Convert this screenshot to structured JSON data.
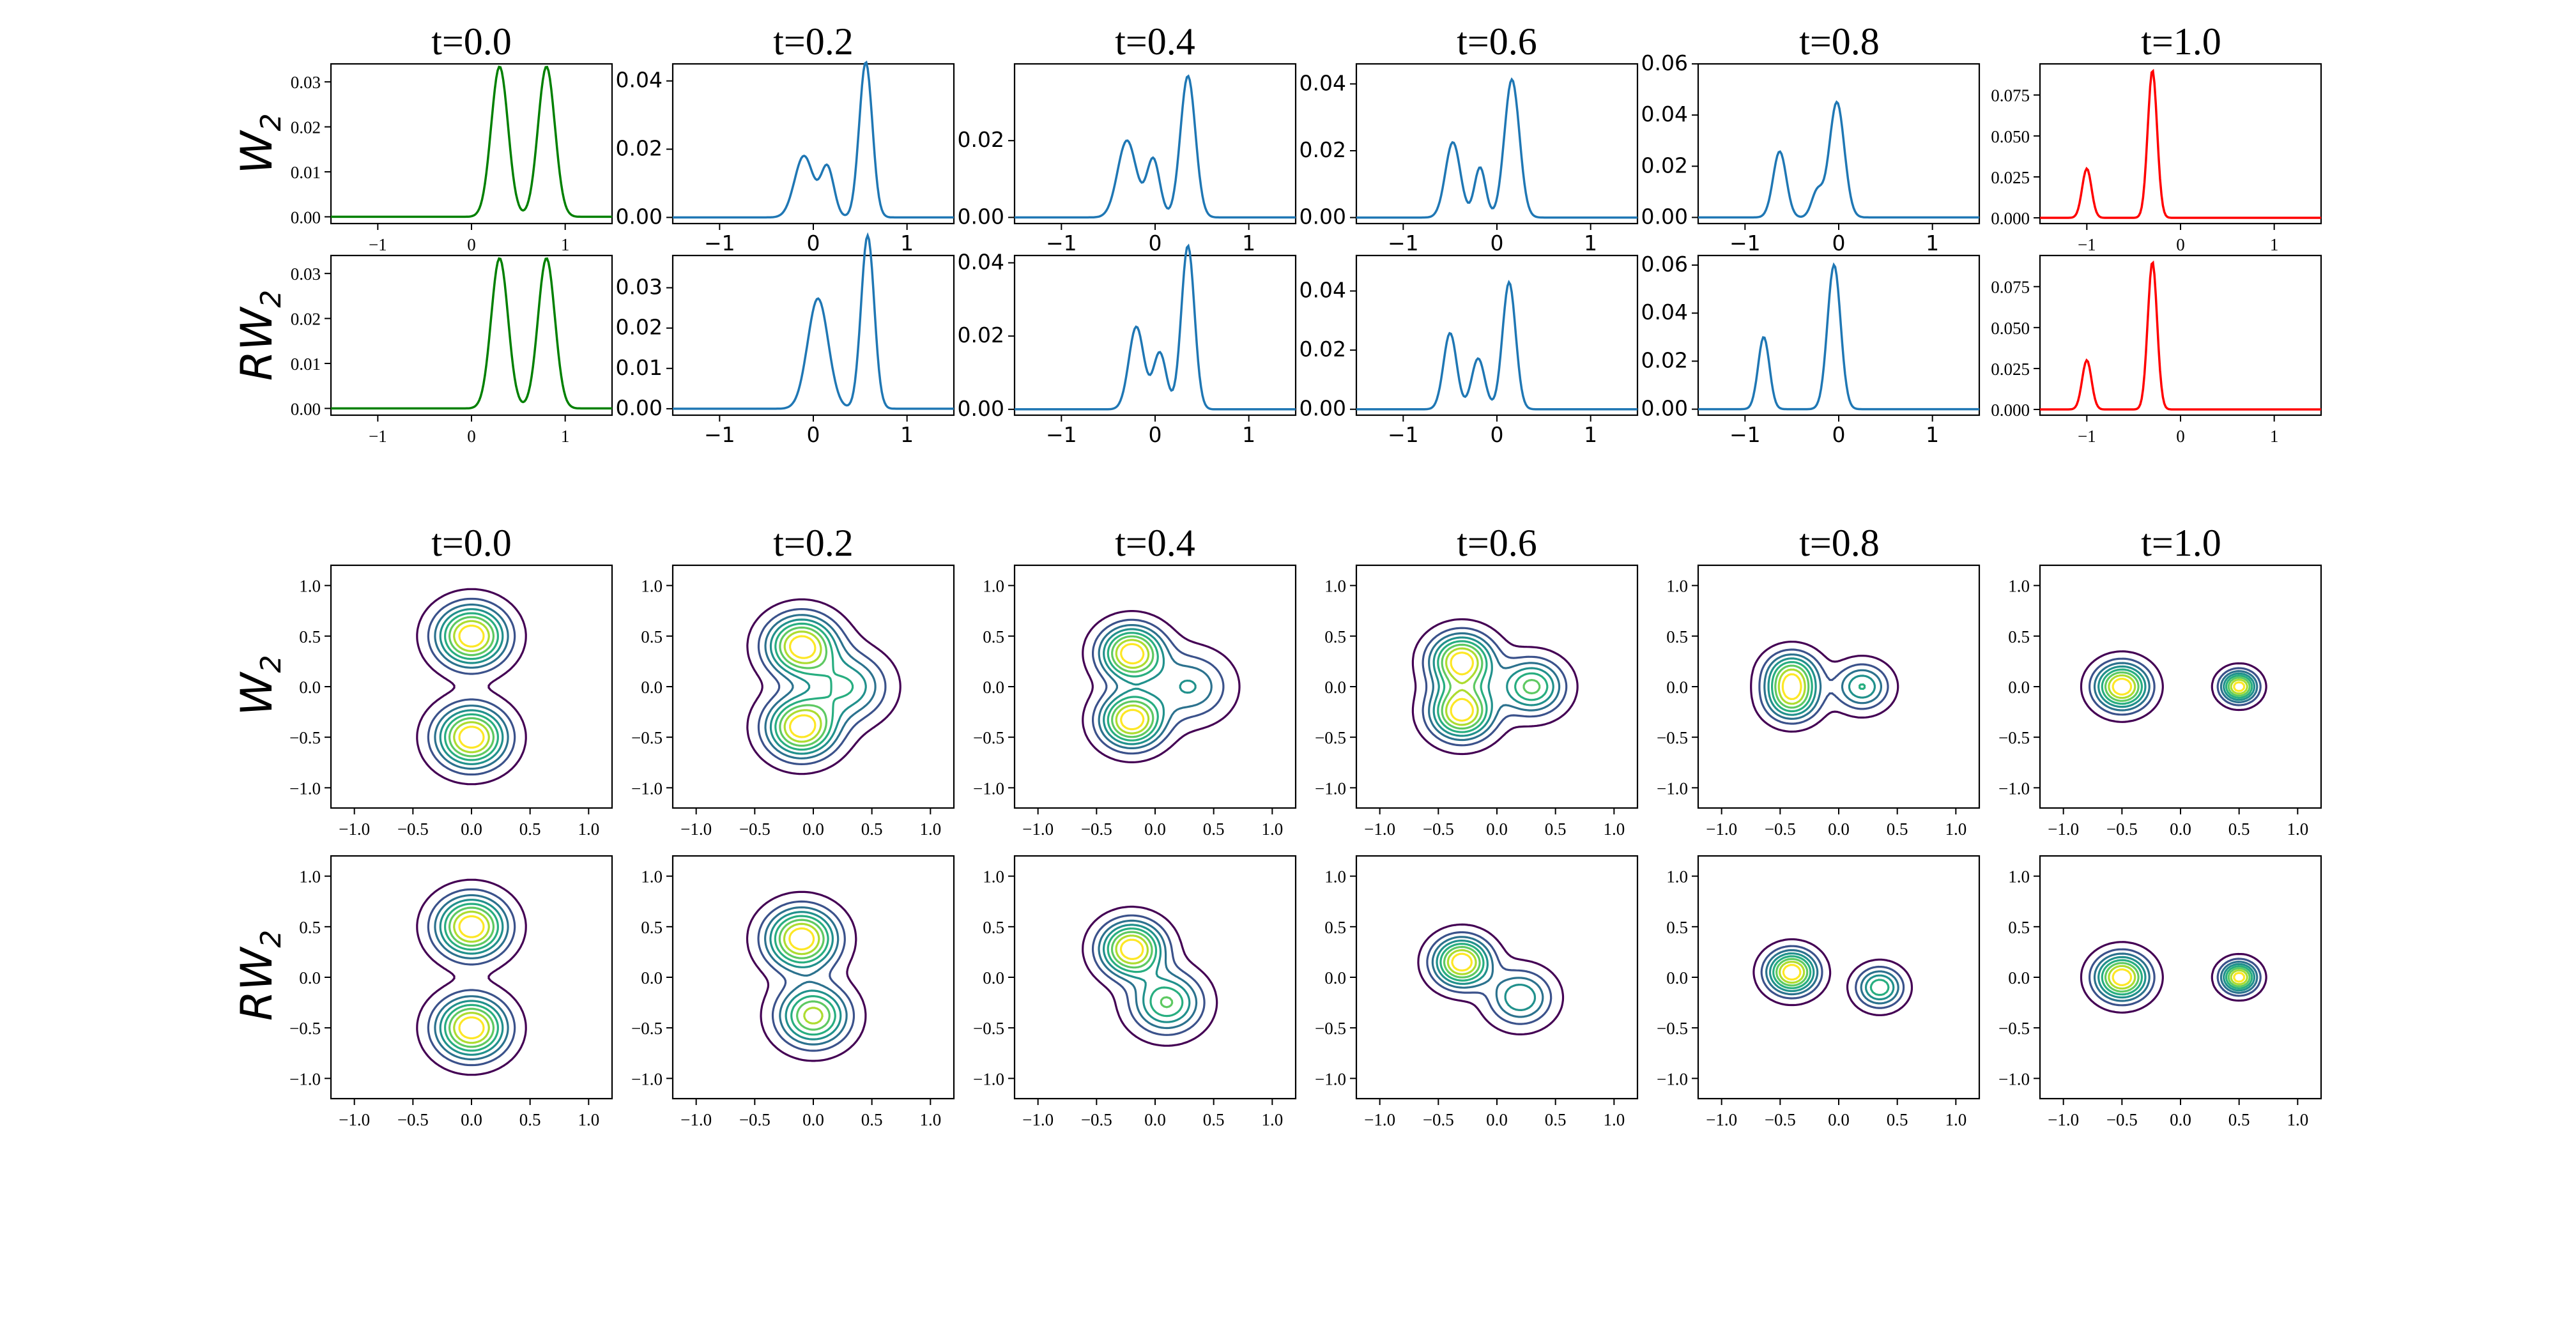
{
  "figure": {
    "column_titles": [
      "t=0.0",
      "t=0.2",
      "t=0.4",
      "t=0.6",
      "t=0.8",
      "t=1.0"
    ],
    "row_labels": {
      "w2": {
        "main": "W",
        "sub": "2"
      },
      "rw2": {
        "main": "RW",
        "sub": "2"
      }
    },
    "colors": {
      "start": "#008000",
      "middle": "#1f77b4",
      "end": "#ff0000",
      "contour_levels": [
        "#440154",
        "#3b528b",
        "#2c728e",
        "#21918c",
        "#28ae80",
        "#5ec962",
        "#addc30",
        "#fde725"
      ]
    }
  },
  "chart_data": [
    {
      "type": "line",
      "group": "1d densities",
      "method": "W2",
      "xlim": [
        -1.5,
        1.5
      ],
      "x_ticks": [
        "-1",
        "0",
        "1"
      ],
      "panels": [
        {
          "t": "t=0.0",
          "color": "start",
          "components": [
            {
              "mu": 0.3,
              "sigma": 0.09,
              "w": 0.5
            },
            {
              "mu": 0.8,
              "sigma": 0.09,
              "w": 0.5
            }
          ],
          "ylim": [
            -0.0015,
            0.034
          ],
          "y_ticks": [
            "0.00",
            "0.01",
            "0.02",
            "0.03"
          ]
        },
        {
          "t": "t=0.2",
          "color": "middle",
          "components": [
            {
              "mu": -0.1,
              "sigma": 0.1,
              "w": 0.3
            },
            {
              "mu": 0.15,
              "sigma": 0.07,
              "w": 0.17
            },
            {
              "mu": 0.56,
              "sigma": 0.07,
              "w": 0.53
            }
          ],
          "ylim": [
            -0.0018,
            0.045
          ],
          "y_ticks": [
            "0.00",
            "0.02",
            "0.04"
          ]
        },
        {
          "t": "t=0.4",
          "color": "middle",
          "components": [
            {
              "mu": -0.3,
              "sigma": 0.1,
              "w": 0.34
            },
            {
              "mu": -0.02,
              "sigma": 0.07,
              "w": 0.18
            },
            {
              "mu": 0.35,
              "sigma": 0.08,
              "w": 0.5
            }
          ],
          "ylim": [
            -0.0016,
            0.04
          ],
          "y_ticks": [
            "0.00",
            "0.02"
          ]
        },
        {
          "t": "t=0.6",
          "color": "middle",
          "components": [
            {
              "mu": -0.47,
              "sigma": 0.08,
              "w": 0.3
            },
            {
              "mu": -0.18,
              "sigma": 0.06,
              "w": 0.15
            },
            {
              "mu": 0.16,
              "sigma": 0.08,
              "w": 0.55
            }
          ],
          "ylim": [
            -0.0018,
            0.046
          ],
          "y_ticks": [
            "0.00",
            "0.02",
            "0.04"
          ]
        },
        {
          "t": "t=0.8",
          "color": "middle",
          "components": [
            {
              "mu": -0.63,
              "sigma": 0.07,
              "w": 0.3
            },
            {
              "mu": -0.23,
              "sigma": 0.06,
              "w": 0.1
            },
            {
              "mu": -0.02,
              "sigma": 0.08,
              "w": 0.6
            }
          ],
          "ylim": [
            -0.0024,
            0.06
          ],
          "y_ticks": [
            "0.00",
            "0.02",
            "0.04",
            "0.06"
          ]
        },
        {
          "t": "t=1.0",
          "color": "end",
          "components": [
            {
              "mu": -1.0,
              "sigma": 0.05,
              "w": 0.25
            },
            {
              "mu": -0.3,
              "sigma": 0.05,
              "w": 0.75
            }
          ],
          "ylim": [
            -0.0035,
            0.094
          ],
          "y_ticks": [
            "0.000",
            "0.025",
            "0.050",
            "0.075"
          ]
        }
      ]
    },
    {
      "type": "line",
      "group": "1d densities",
      "method": "RW2",
      "xlim": [
        -1.5,
        1.5
      ],
      "x_ticks": [
        "-1",
        "0",
        "1"
      ],
      "panels": [
        {
          "t": "t=0.0",
          "color": "start",
          "components": [
            {
              "mu": 0.3,
              "sigma": 0.09,
              "w": 0.5
            },
            {
              "mu": 0.8,
              "sigma": 0.09,
              "w": 0.5
            }
          ],
          "ylim": [
            -0.0015,
            0.034
          ],
          "y_ticks": [
            "0.00",
            "0.01",
            "0.02",
            "0.03"
          ]
        },
        {
          "t": "t=0.2",
          "color": "middle",
          "components": [
            {
              "mu": 0.05,
              "sigma": 0.11,
              "w": 0.5
            },
            {
              "mu": 0.58,
              "sigma": 0.07,
              "w": 0.5
            }
          ],
          "ylim": [
            -0.0016,
            0.038
          ],
          "y_ticks": [
            "0.00",
            "0.01",
            "0.02",
            "0.03"
          ]
        },
        {
          "t": "t=0.4",
          "color": "middle",
          "components": [
            {
              "mu": -0.2,
              "sigma": 0.08,
              "w": 0.3
            },
            {
              "mu": 0.05,
              "sigma": 0.07,
              "w": 0.18
            },
            {
              "mu": 0.35,
              "sigma": 0.07,
              "w": 0.52
            }
          ],
          "ylim": [
            -0.0016,
            0.042
          ],
          "y_ticks": [
            "0.00",
            "0.02",
            "0.04"
          ]
        },
        {
          "t": "t=0.6",
          "color": "middle",
          "components": [
            {
              "mu": -0.5,
              "sigma": 0.07,
              "w": 0.3
            },
            {
              "mu": -0.2,
              "sigma": 0.07,
              "w": 0.2
            },
            {
              "mu": 0.13,
              "sigma": 0.07,
              "w": 0.5
            }
          ],
          "ylim": [
            -0.002,
            0.052
          ],
          "y_ticks": [
            "0.00",
            "0.02",
            "0.04"
          ]
        },
        {
          "t": "t=0.8",
          "color": "middle",
          "components": [
            {
              "mu": -0.8,
              "sigma": 0.06,
              "w": 0.3
            },
            {
              "mu": -0.05,
              "sigma": 0.07,
              "w": 0.7
            }
          ],
          "ylim": [
            -0.0025,
            0.064
          ],
          "y_ticks": [
            "0.00",
            "0.02",
            "0.04",
            "0.06"
          ]
        },
        {
          "t": "t=1.0",
          "color": "end",
          "components": [
            {
              "mu": -1.0,
              "sigma": 0.05,
              "w": 0.25
            },
            {
              "mu": -0.3,
              "sigma": 0.05,
              "w": 0.75
            }
          ],
          "ylim": [
            -0.0035,
            0.094
          ],
          "y_ticks": [
            "0.000",
            "0.025",
            "0.050",
            "0.075"
          ]
        }
      ]
    },
    {
      "type": "contour",
      "group": "2d densities",
      "method": "W2",
      "xlim": [
        -1.2,
        1.2
      ],
      "ylim": [
        -1.2,
        1.2
      ],
      "x_ticks": [
        "-1.0",
        "-0.5",
        "0.0",
        "0.5",
        "1.0"
      ],
      "y_ticks": [
        "-1.0",
        "-0.5",
        "0.0",
        "0.5",
        "1.0"
      ],
      "panels": [
        {
          "t": "t=0.0",
          "components": [
            {
              "x": 0.0,
              "y": 0.5,
              "s": 0.2,
              "w": 0.5
            },
            {
              "x": 0.0,
              "y": -0.5,
              "s": 0.2,
              "w": 0.5
            }
          ]
        },
        {
          "t": "t=0.2",
          "components": [
            {
              "x": -0.1,
              "y": 0.4,
              "s": 0.2,
              "w": 0.38
            },
            {
              "x": -0.1,
              "y": -0.4,
              "s": 0.2,
              "w": 0.38
            },
            {
              "x": 0.3,
              "y": 0.0,
              "s": 0.22,
              "w": 0.24
            }
          ]
        },
        {
          "t": "t=0.4",
          "components": [
            {
              "x": -0.2,
              "y": 0.33,
              "s": 0.18,
              "w": 0.38
            },
            {
              "x": -0.2,
              "y": -0.33,
              "s": 0.18,
              "w": 0.38
            },
            {
              "x": 0.3,
              "y": 0.0,
              "s": 0.22,
              "w": 0.24
            }
          ]
        },
        {
          "t": "t=0.6",
          "components": [
            {
              "x": -0.3,
              "y": 0.25,
              "s": 0.18,
              "w": 0.37
            },
            {
              "x": -0.3,
              "y": -0.25,
              "s": 0.18,
              "w": 0.37
            },
            {
              "x": 0.3,
              "y": 0.0,
              "s": 0.18,
              "w": 0.26
            }
          ]
        },
        {
          "t": "t=0.8",
          "components": [
            {
              "x": -0.4,
              "y": 0.12,
              "s": 0.15,
              "w": 0.36
            },
            {
              "x": -0.4,
              "y": -0.12,
              "s": 0.15,
              "w": 0.36
            },
            {
              "x": 0.2,
              "y": 0.0,
              "s": 0.15,
              "w": 0.28
            }
          ]
        },
        {
          "t": "t=1.0",
          "components": [
            {
              "x": -0.5,
              "y": 0.0,
              "s": 0.15,
              "w": 0.7
            },
            {
              "x": 0.5,
              "y": 0.0,
              "s": 0.1,
              "w": 0.3
            }
          ]
        }
      ]
    },
    {
      "type": "contour",
      "group": "2d densities",
      "method": "RW2",
      "xlim": [
        -1.2,
        1.2
      ],
      "ylim": [
        -1.2,
        1.2
      ],
      "x_ticks": [
        "-1.0",
        "-0.5",
        "0.0",
        "0.5",
        "1.0"
      ],
      "y_ticks": [
        "-1.0",
        "-0.5",
        "0.0",
        "0.5",
        "1.0"
      ],
      "panels": [
        {
          "t": "t=0.0",
          "components": [
            {
              "x": 0.0,
              "y": 0.5,
              "s": 0.2,
              "w": 0.5
            },
            {
              "x": 0.0,
              "y": -0.5,
              "s": 0.2,
              "w": 0.5
            }
          ]
        },
        {
          "t": "t=0.2",
          "components": [
            {
              "x": -0.1,
              "y": 0.38,
              "s": 0.2,
              "w": 0.55
            },
            {
              "x": 0.0,
              "y": -0.38,
              "s": 0.2,
              "w": 0.45
            }
          ]
        },
        {
          "t": "t=0.4",
          "components": [
            {
              "x": -0.2,
              "y": 0.28,
              "s": 0.18,
              "w": 0.55
            },
            {
              "x": 0.1,
              "y": -0.25,
              "s": 0.2,
              "w": 0.45
            }
          ]
        },
        {
          "t": "t=0.6",
          "components": [
            {
              "x": -0.3,
              "y": 0.15,
              "s": 0.16,
              "w": 0.6
            },
            {
              "x": 0.2,
              "y": -0.2,
              "s": 0.18,
              "w": 0.4
            }
          ]
        },
        {
          "t": "t=0.8",
          "components": [
            {
              "x": -0.4,
              "y": 0.05,
              "s": 0.14,
              "w": 0.65
            },
            {
              "x": 0.35,
              "y": -0.1,
              "s": 0.13,
              "w": 0.35
            }
          ]
        },
        {
          "t": "t=1.0",
          "components": [
            {
              "x": -0.5,
              "y": 0.0,
              "s": 0.15,
              "w": 0.7
            },
            {
              "x": 0.5,
              "y": 0.0,
              "s": 0.1,
              "w": 0.3
            }
          ]
        }
      ]
    }
  ]
}
